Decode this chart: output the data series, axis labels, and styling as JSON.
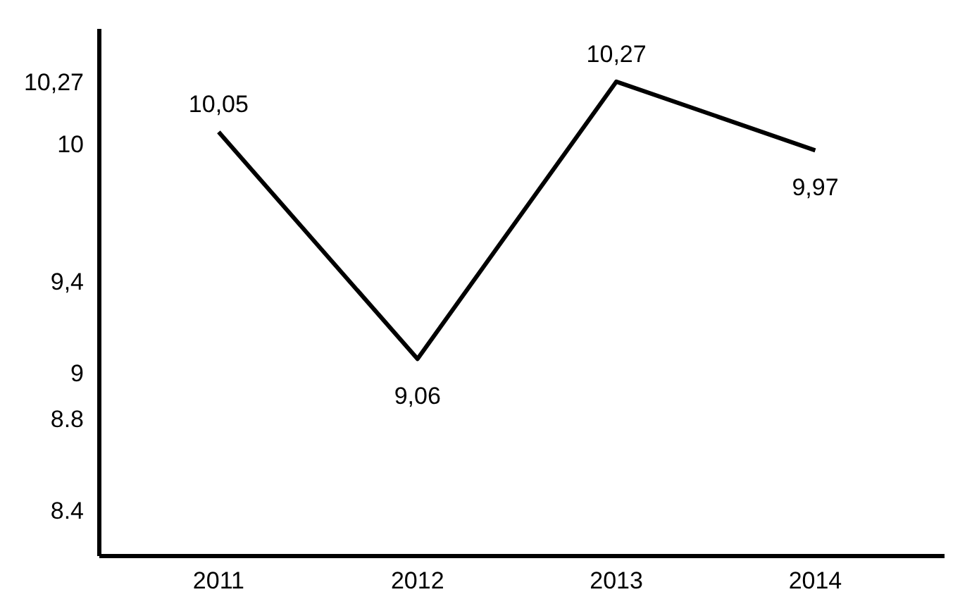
{
  "chart_data": {
    "type": "line",
    "categories": [
      "2011",
      "2012",
      "2013",
      "2014"
    ],
    "values": [
      10.05,
      9.06,
      10.27,
      9.97
    ],
    "value_labels": [
      "10,05",
      "9,06",
      "10,27",
      "9,97"
    ],
    "color": "#000000",
    "ylim": [
      8.2,
      10.5
    ],
    "yticks": [
      {
        "value": 8.4,
        "label": "8.4"
      },
      {
        "value": 8.8,
        "label": "8.8"
      },
      9,
      {
        "value": 9.4,
        "label": "9,4"
      },
      10,
      {
        "value": 10.27,
        "label": "10,27"
      }
    ],
    "grid": false,
    "marker": "none",
    "line_style": "solid"
  }
}
